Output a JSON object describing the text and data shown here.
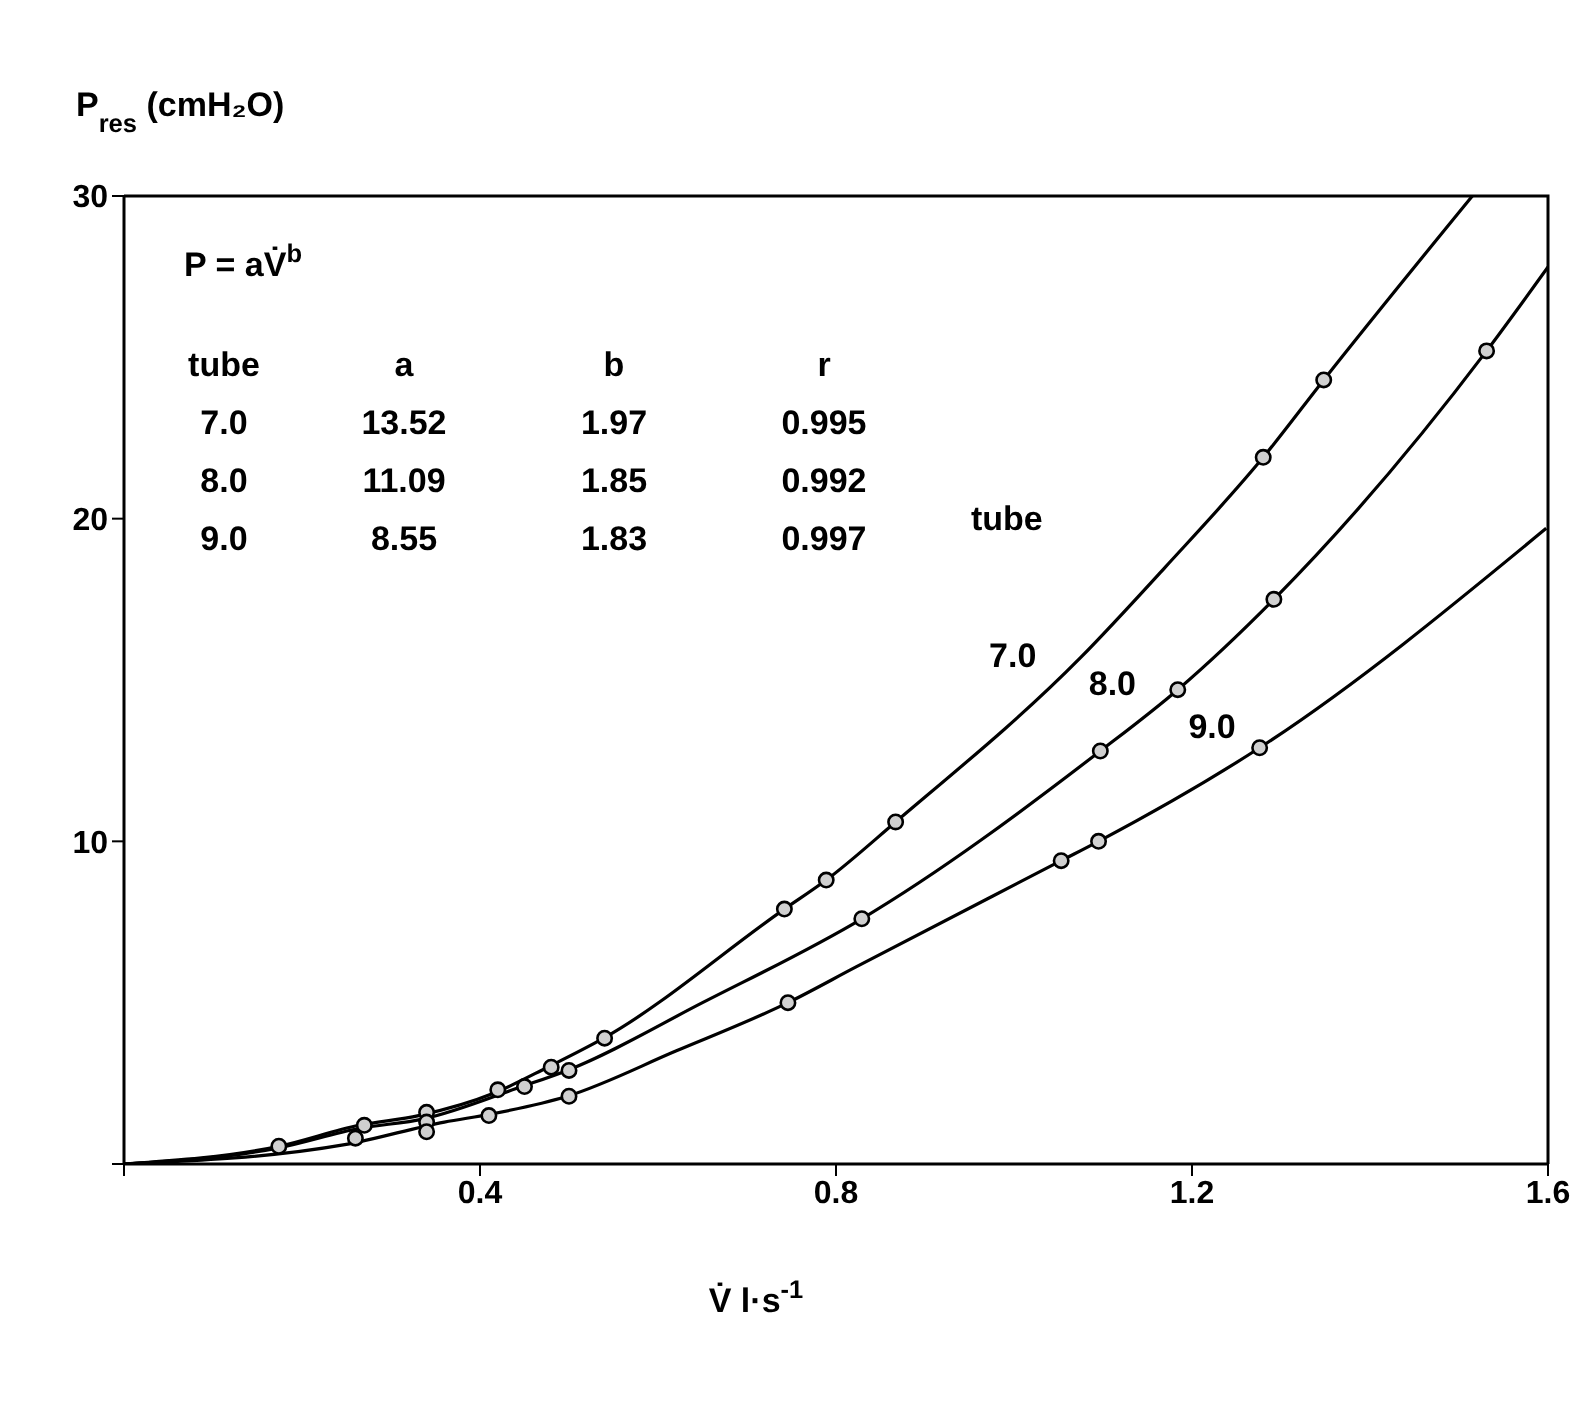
{
  "chart_data": {
    "type": "line",
    "xlabel": "V̇  l·s$^{-1}$",
    "ylabel": "P$_{res}$ (cmH₂O)",
    "xlim": [
      0,
      1.6
    ],
    "xticks": [
      {
        "value": 0,
        "label": null
      },
      0.4,
      0.8,
      1.2,
      1.6
    ],
    "ylim": [
      0,
      30
    ],
    "yticks": [
      {
        "value": 0,
        "label": null
      },
      10,
      20,
      30
    ],
    "annotations": [
      "P = aV̇$^{b}$",
      "tube",
      "a",
      "b",
      "r",
      "7.0",
      "13.52",
      "1.97",
      "0.995",
      "8.0",
      "11.09",
      "1.85",
      "0.992",
      "9.0",
      "8.55",
      "1.83",
      "0.997",
      "tube"
    ],
    "series": [
      {
        "name": "7.0",
        "color": "#000000",
        "marker": "none",
        "x": [
          0,
          0.174,
          0.264,
          0.331,
          0.416,
          0.476,
          0.539,
          0.742,
          0.789,
          0.867,
          1.075,
          1.17,
          1.28,
          1.348,
          1.515
        ],
        "values": [
          0,
          0.55,
          1.2,
          1.5,
          2.2,
          3.0,
          3.9,
          7.9,
          8.8,
          10.6,
          15.7,
          18.5,
          21.9,
          24.3,
          30
        ]
      },
      {
        "name": "8.0",
        "color": "#000000",
        "marker": "none",
        "x": [
          0,
          0.174,
          0.264,
          0.337,
          0.447,
          0.498,
          0.65,
          0.829,
          1.097,
          1.184,
          1.292,
          1.531,
          1.6
        ],
        "values": [
          0,
          0.5,
          1.1,
          1.4,
          2.4,
          2.9,
          5.0,
          7.6,
          12.8,
          14.7,
          17.5,
          25.2,
          27.8
        ]
      },
      {
        "name": "9.0",
        "color": "#000000",
        "marker": "none",
        "x": [
          0,
          0.248,
          0.36,
          0.413,
          0.498,
          0.62,
          0.746,
          0.822,
          1.053,
          1.095,
          1.276,
          1.598
        ],
        "values": [
          0,
          0.6,
          1.3,
          1.55,
          2.1,
          3.5,
          5.0,
          6.1,
          9.4,
          10.0,
          12.9,
          19.7
        ]
      },
      {
        "type": "scatter",
        "color": "#000000",
        "marker": "circle",
        "x": [
          0.174,
          0.27,
          0.34,
          0.42,
          0.48,
          0.54,
          0.742,
          0.789,
          0.867,
          1.28,
          1.348
        ],
        "values": [
          0.55,
          1.2,
          1.6,
          2.3,
          3.0,
          3.9,
          7.9,
          8.8,
          10.6,
          21.9,
          24.3
        ]
      },
      {
        "type": "scatter",
        "color": "#000000",
        "marker": "circle",
        "x": [
          0.26,
          0.34,
          0.45,
          0.5,
          0.829,
          1.097,
          1.184,
          1.292,
          1.531
        ],
        "values": [
          0.8,
          1.3,
          2.4,
          2.9,
          7.6,
          12.8,
          14.7,
          17.5,
          25.2
        ]
      },
      {
        "type": "scatter",
        "color": "#000000",
        "marker": "circle",
        "x": [
          0.34,
          0.41,
          0.5,
          0.746,
          1.053,
          1.095,
          1.276
        ],
        "values": [
          1.0,
          1.5,
          2.1,
          5.0,
          9.4,
          10.0,
          12.9
        ]
      }
    ]
  }
}
